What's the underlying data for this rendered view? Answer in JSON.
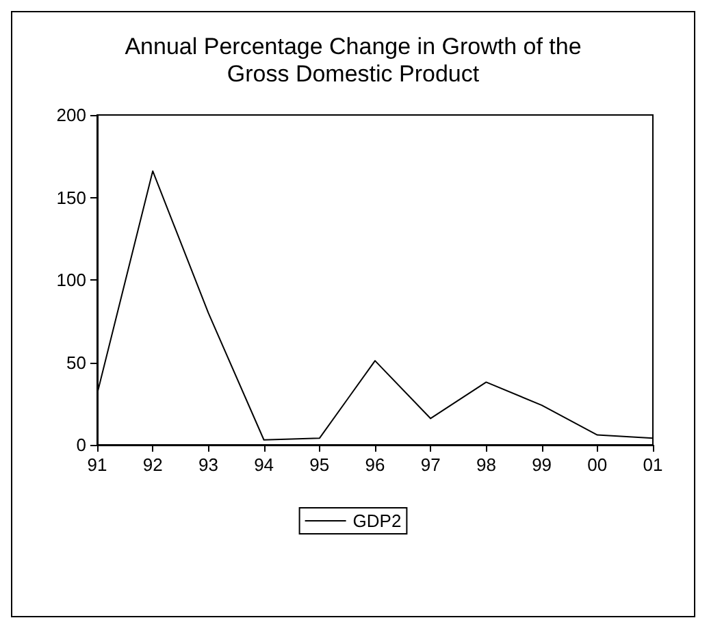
{
  "chart_data": {
    "type": "line",
    "title": "Annual Percentage Change in Growth of the\nGross Domestic Product",
    "categories": [
      "91",
      "92",
      "93",
      "94",
      "95",
      "96",
      "97",
      "98",
      "99",
      "00",
      "01"
    ],
    "series": [
      {
        "name": "GDP2",
        "color": "#000000",
        "values": [
          31,
          166,
          80,
          3,
          4,
          51,
          16,
          38,
          24,
          6,
          4
        ]
      }
    ],
    "ylim": [
      0,
      200
    ],
    "yticks": [
      0,
      50,
      100,
      150,
      200
    ],
    "grid": false,
    "legend": "bottom",
    "marker": "none",
    "line_style": "solid"
  }
}
